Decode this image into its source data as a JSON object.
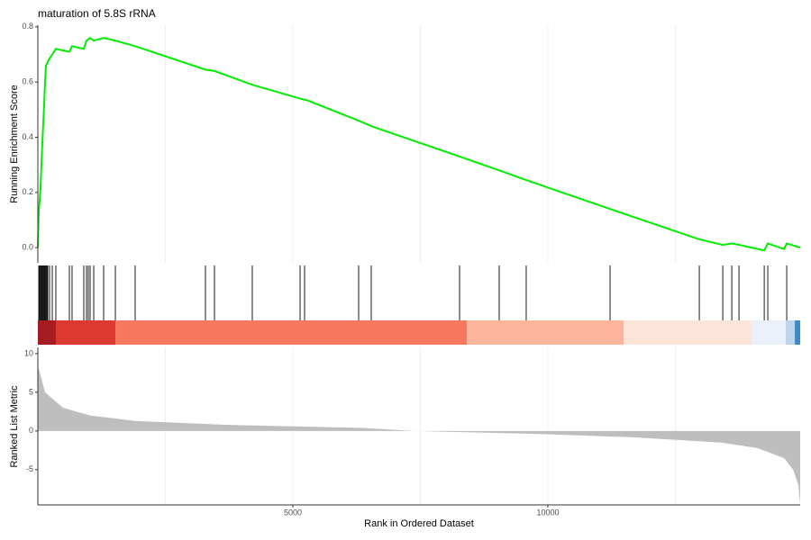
{
  "chart_data": [
    {
      "type": "line",
      "title": "maturation of 5.8S rRNA",
      "ylabel": "Running Enrichment Score",
      "color": "#00ee00",
      "x": [
        0,
        18,
        35,
        53,
        88,
        124,
        141,
        159,
        212,
        283,
        353,
        618,
        671,
        901,
        954,
        1025,
        1096,
        1290,
        1520,
        1908,
        3286,
        3463,
        4205,
        5142,
        5265,
        6290,
        6537,
        8269,
        9046,
        9576,
        11220,
        12970,
        13430,
        13607,
        13748,
        14243,
        14313,
        14631,
        14684,
        14948
      ],
      "values": [
        0,
        0.13,
        0.17,
        0.22,
        0.38,
        0.52,
        0.6,
        0.66,
        0.68,
        0.7,
        0.72,
        0.71,
        0.73,
        0.72,
        0.75,
        0.76,
        0.75,
        0.76,
        0.75,
        0.73,
        0.645,
        0.64,
        0.59,
        0.54,
        0.535,
        0.46,
        0.44,
        0.33,
        0.28,
        0.245,
        0.14,
        0.03,
        0.01,
        0.015,
        0.01,
        -0.01,
        0.015,
        -0.005,
        0.015,
        0
      ],
      "xlim": [
        0,
        14948
      ],
      "ylim": [
        -0.055,
        0.806
      ],
      "yticks": [
        {
          "value": 0,
          "label": "0.0"
        },
        0.2,
        0.4,
        0.6,
        0.8
      ],
      "xgrid": [
        2500,
        5000,
        7500,
        10000,
        12500
      ]
    },
    {
      "type": "rug",
      "color": "#000000",
      "xlim": [
        0,
        14948
      ],
      "hits": [
        18,
        35,
        53,
        71,
        88,
        106,
        124,
        141,
        159,
        177,
        194,
        230,
        283,
        353,
        618,
        671,
        901,
        954,
        989,
        1025,
        1096,
        1290,
        1520,
        1908,
        3286,
        3463,
        4205,
        5142,
        5230,
        6290,
        6537,
        8269,
        9046,
        9576,
        11220,
        12970,
        13430,
        13607,
        13748,
        14243,
        14313,
        14684
      ],
      "bands": [
        {
          "start": 0,
          "end": 353,
          "color": "#a41c1f"
        },
        {
          "start": 353,
          "end": 1520,
          "color": "#dc3a30"
        },
        {
          "start": 1520,
          "end": 8411,
          "color": "#f6785e"
        },
        {
          "start": 8411,
          "end": 11486,
          "color": "#fcb59b"
        },
        {
          "start": 11486,
          "end": 13977,
          "color": "#fde4d8"
        },
        {
          "start": 13977,
          "end": 14666,
          "color": "#eaf0fa"
        },
        {
          "start": 14666,
          "end": 14843,
          "color": "#bdd4ea"
        },
        {
          "start": 14843,
          "end": 14948,
          "color": "#3f8ac5"
        }
      ]
    },
    {
      "type": "area",
      "ylabel": "Ranked List Metric",
      "xlabel": "Rank in Ordered Dataset",
      "color": "#bebebe",
      "x": [
        0,
        141,
        495,
        1025,
        1908,
        3675,
        6326,
        7386,
        9860,
        11627,
        13394,
        14101,
        14631,
        14808,
        14914,
        14948
      ],
      "values": [
        8.5,
        5,
        3,
        2,
        1.3,
        0.8,
        0.4,
        0,
        -0.4,
        -0.8,
        -1.5,
        -2.2,
        -3.5,
        -5,
        -7,
        -9.5
      ],
      "xlim": [
        0,
        14948
      ],
      "ylim": [
        -9.55,
        10.8
      ],
      "yticks": [
        10,
        5,
        0,
        -5
      ],
      "xticks": [
        5000,
        10000
      ],
      "xgrid": [
        2500,
        5000,
        7500,
        10000,
        12500
      ]
    }
  ]
}
